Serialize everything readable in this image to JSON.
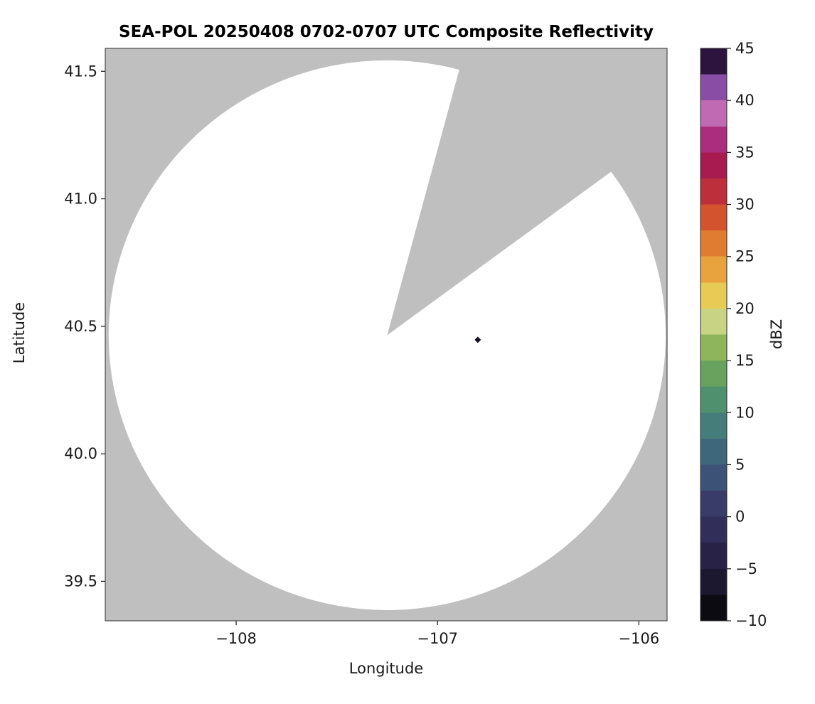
{
  "figure": {
    "title": "SEA-POL 20250408 0702-0707 UTC Composite Reflectivity",
    "xlabel": "Longitude",
    "ylabel": "Latitude",
    "colorbar_label": "dBZ"
  },
  "chart_data": {
    "type": "heatmap",
    "title": "SEA-POL 20250408 0702-0707 UTC Composite Reflectivity",
    "xlabel": "Longitude",
    "ylabel": "Latitude",
    "xlim": [
      -108.65,
      -105.86
    ],
    "ylim": [
      39.345,
      41.59
    ],
    "grid": false,
    "legend_position": "none",
    "xticks": [
      {
        "value": -108,
        "label": "−108"
      },
      {
        "value": -107,
        "label": "−107"
      },
      {
        "value": -106,
        "label": "−106"
      }
    ],
    "yticks": [
      {
        "value": 39.5,
        "label": "39.5"
      },
      {
        "value": 40.0,
        "label": "40.0"
      },
      {
        "value": 40.5,
        "label": "40.5"
      },
      {
        "value": 41.0,
        "label": "41.0"
      },
      {
        "value": 41.5,
        "label": "41.5"
      }
    ],
    "background_outside_range_color": "#bfbfbf",
    "coverage_fill_color": "#ffffff",
    "radar_coverage": {
      "center_lon": -107.25,
      "center_lat": 40.465,
      "radius_lon_deg": 1.383,
      "radius_lat_deg": 1.078,
      "blocked_sector_azimuth_start_deg": 15,
      "blocked_sector_azimuth_end_deg": 53.5
    },
    "echoes": [
      {
        "lon": -106.8,
        "lat": 40.447,
        "approx_dbz": 45,
        "color": "#17101f",
        "shape": "diamond"
      }
    ],
    "colorbar": {
      "label": "dBZ",
      "min": -10,
      "max": 45,
      "ticks": [
        {
          "value": -10,
          "label": "−10"
        },
        {
          "value": -5,
          "label": "−5"
        },
        {
          "value": 0,
          "label": "0"
        },
        {
          "value": 5,
          "label": "5"
        },
        {
          "value": 10,
          "label": "10"
        },
        {
          "value": 15,
          "label": "15"
        },
        {
          "value": 20,
          "label": "20"
        },
        {
          "value": 25,
          "label": "25"
        },
        {
          "value": 30,
          "label": "30"
        },
        {
          "value": 35,
          "label": "35"
        },
        {
          "value": 40,
          "label": "40"
        },
        {
          "value": 45,
          "label": "45"
        }
      ],
      "band_step_dbz": 2.5,
      "band_colors_low_to_high": [
        "#0c0b11",
        "#1b1830",
        "#272246",
        "#312e59",
        "#393c69",
        "#3c5276",
        "#3f677b",
        "#457d7a",
        "#4f916e",
        "#68a25e",
        "#8fb55a",
        "#c8d383",
        "#e7cb55",
        "#e8a33e",
        "#e07c31",
        "#d2532e",
        "#bc2f3b",
        "#a81b51",
        "#ab2e7e",
        "#c06ab4",
        "#8a4da6",
        "#2c143f"
      ]
    }
  }
}
